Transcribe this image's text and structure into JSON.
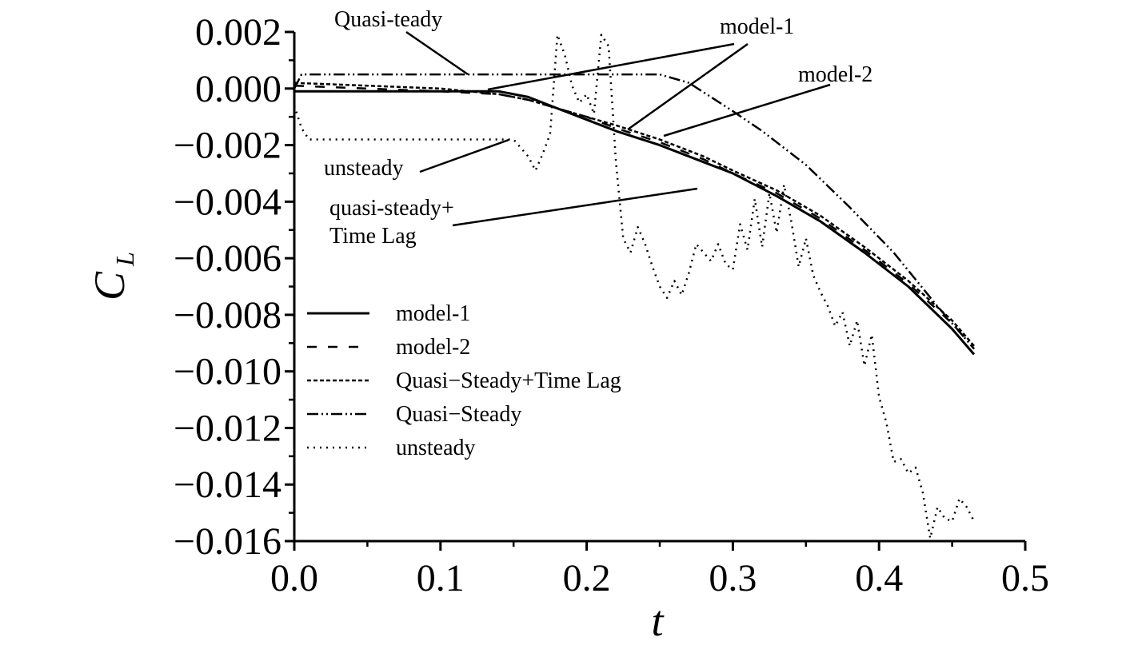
{
  "chart_data": {
    "type": "line",
    "title": "",
    "xlabel": "t",
    "ylabel": {
      "main": "C",
      "sub": "L"
    },
    "xlim": [
      0.0,
      0.5
    ],
    "ylim": [
      -0.016,
      0.002
    ],
    "x_ticks": [
      "0.0",
      "0.1",
      "0.2",
      "0.3",
      "0.4",
      "0.5"
    ],
    "y_ticks": [
      "0.002",
      "0.000",
      "−0.002",
      "−0.004",
      "−0.006",
      "−0.008",
      "−0.010",
      "−0.012",
      "−0.014",
      "−0.016"
    ],
    "grid": false,
    "legend_position": "center-left",
    "series": [
      {
        "name": "model-1",
        "style": "solid",
        "x": [
          0.0,
          0.05,
          0.1,
          0.14,
          0.16,
          0.18,
          0.2,
          0.22,
          0.25,
          0.28,
          0.3,
          0.33,
          0.36,
          0.39,
          0.42,
          0.45,
          0.465
        ],
        "y": [
          -0.0001,
          -0.0001,
          -0.0001,
          -0.0001,
          -0.0003,
          -0.0007,
          -0.0011,
          -0.0015,
          -0.002,
          -0.0026,
          -0.003,
          -0.0038,
          -0.0047,
          -0.0058,
          -0.007,
          -0.0085,
          -0.0094
        ]
      },
      {
        "name": "model-2",
        "style": "dash",
        "x": [
          0.0,
          0.05,
          0.1,
          0.14,
          0.16,
          0.18,
          0.2,
          0.22,
          0.25,
          0.28,
          0.3,
          0.33,
          0.36,
          0.39,
          0.42,
          0.45,
          0.465
        ],
        "y": [
          0.0001,
          0.0,
          -0.0001,
          -0.0002,
          -0.0004,
          -0.0007,
          -0.001,
          -0.0014,
          -0.0019,
          -0.0025,
          -0.003,
          -0.0037,
          -0.0046,
          -0.0057,
          -0.0069,
          -0.0083,
          -0.0092
        ]
      },
      {
        "name": "Quasi−Steady+Time Lag",
        "style": "short-dash",
        "x": [
          0.0,
          0.05,
          0.1,
          0.14,
          0.16,
          0.18,
          0.2,
          0.22,
          0.25,
          0.28,
          0.3,
          0.33,
          0.36,
          0.39,
          0.42,
          0.45,
          0.465
        ],
        "y": [
          0.0002,
          0.0001,
          0.0,
          -0.0002,
          -0.0004,
          -0.0007,
          -0.001,
          -0.0013,
          -0.0018,
          -0.0024,
          -0.0029,
          -0.0036,
          -0.0045,
          -0.0056,
          -0.0068,
          -0.0082,
          -0.0091
        ]
      },
      {
        "name": "Quasi−Steady",
        "style": "dash-dot-dot",
        "x": [
          0.0,
          0.005,
          0.05,
          0.1,
          0.15,
          0.2,
          0.25,
          0.27,
          0.3,
          0.32,
          0.35,
          0.38,
          0.41,
          0.44,
          0.465
        ],
        "y": [
          0.0,
          0.0005,
          0.0005,
          0.0005,
          0.0005,
          0.0005,
          0.0005,
          0.0002,
          -0.0008,
          -0.0015,
          -0.0027,
          -0.0042,
          -0.0058,
          -0.0077,
          -0.0092
        ]
      },
      {
        "name": "unsteady",
        "style": "dotted",
        "x": [
          0.0,
          0.005,
          0.01,
          0.05,
          0.1,
          0.15,
          0.16,
          0.165,
          0.17,
          0.175,
          0.18,
          0.185,
          0.19,
          0.195,
          0.2,
          0.205,
          0.21,
          0.215,
          0.22,
          0.225,
          0.23,
          0.235,
          0.24,
          0.245,
          0.25,
          0.255,
          0.26,
          0.265,
          0.27,
          0.275,
          0.28,
          0.285,
          0.29,
          0.295,
          0.3,
          0.305,
          0.31,
          0.315,
          0.32,
          0.325,
          0.33,
          0.335,
          0.34,
          0.345,
          0.35,
          0.355,
          0.36,
          0.365,
          0.37,
          0.375,
          0.38,
          0.385,
          0.39,
          0.395,
          0.4,
          0.405,
          0.41,
          0.415,
          0.42,
          0.425,
          0.43,
          0.435,
          0.44,
          0.445,
          0.45,
          0.455,
          0.46,
          0.465
        ],
        "y": [
          -0.0006,
          -0.0014,
          -0.0018,
          -0.0018,
          -0.0018,
          -0.0018,
          -0.0024,
          -0.0029,
          -0.0023,
          -0.0016,
          0.0019,
          0.0012,
          0.0001,
          -0.0005,
          -0.0002,
          -0.0009,
          0.0019,
          0.0015,
          -0.0026,
          -0.0053,
          -0.0058,
          -0.0049,
          -0.0055,
          -0.0063,
          -0.007,
          -0.0074,
          -0.0068,
          -0.0073,
          -0.0065,
          -0.0055,
          -0.0058,
          -0.0061,
          -0.0055,
          -0.0062,
          -0.0064,
          -0.0048,
          -0.0057,
          -0.0039,
          -0.0056,
          -0.0037,
          -0.0051,
          -0.0034,
          -0.0047,
          -0.0063,
          -0.0053,
          -0.0066,
          -0.0072,
          -0.0077,
          -0.0084,
          -0.0079,
          -0.0091,
          -0.0082,
          -0.0098,
          -0.0087,
          -0.0109,
          -0.0118,
          -0.0132,
          -0.0131,
          -0.0136,
          -0.0134,
          -0.0143,
          -0.0159,
          -0.0148,
          -0.0152,
          -0.0153,
          -0.0145,
          -0.0148,
          -0.0153
        ]
      }
    ],
    "annotations": [
      {
        "lines": [
          "Quasi-teady"
        ],
        "target": "Quasi−Steady"
      },
      {
        "lines": [
          "model-1"
        ],
        "target": "model-1"
      },
      {
        "lines": [
          "model-2"
        ],
        "target": "model-2"
      },
      {
        "lines": [
          "unsteady"
        ],
        "target": "unsteady"
      },
      {
        "lines": [
          "quasi-steady+",
          "Time Lag"
        ],
        "target": "Quasi−Steady+Time Lag"
      }
    ]
  },
  "colors": {
    "axis": "#000000",
    "series": "#000000",
    "background": "#ffffff"
  }
}
